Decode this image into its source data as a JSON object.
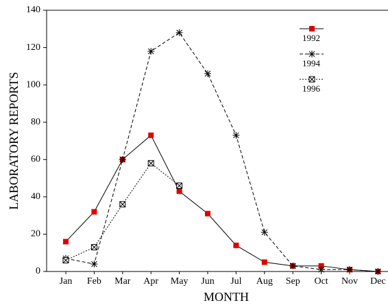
{
  "chart_data": {
    "type": "line",
    "x_label": "MONTH",
    "y_label": "LABORATORY REPORTS",
    "categories": [
      "Jan",
      "Feb",
      "Mar",
      "Apr",
      "May",
      "Jun",
      "Jul",
      "Aug",
      "Sep",
      "Oct",
      "Nov",
      "Dec"
    ],
    "series": [
      {
        "name": "1992",
        "color": "#e00000",
        "marker": "square",
        "dash": "solid",
        "values": [
          16,
          32,
          60,
          73,
          43,
          31,
          14,
          5,
          3,
          3,
          1,
          0
        ]
      },
      {
        "name": "1994",
        "color": "#000000",
        "marker": "star",
        "dash": "dashed",
        "values": [
          7,
          4,
          60,
          118,
          128,
          106,
          73,
          21,
          3,
          1,
          1,
          0
        ]
      },
      {
        "name": "1996",
        "color": "#000000",
        "marker": "boxx",
        "dash": "dotted",
        "values": [
          6,
          13,
          36,
          58,
          46,
          null,
          null,
          null,
          null,
          null,
          null,
          null
        ]
      }
    ],
    "ylim": [
      0,
      140
    ],
    "yticks": [
      0,
      20,
      40,
      60,
      80,
      100,
      120,
      140
    ]
  }
}
